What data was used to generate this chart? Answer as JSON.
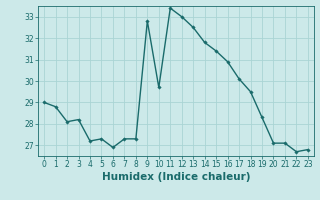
{
  "x": [
    0,
    1,
    2,
    3,
    4,
    5,
    6,
    7,
    8,
    9,
    10,
    11,
    12,
    13,
    14,
    15,
    16,
    17,
    18,
    19,
    20,
    21,
    22,
    23
  ],
  "y": [
    29.0,
    28.8,
    28.1,
    28.2,
    27.2,
    27.3,
    26.9,
    27.3,
    27.3,
    32.8,
    29.7,
    33.4,
    33.0,
    32.5,
    31.8,
    31.4,
    30.9,
    30.1,
    29.5,
    28.3,
    27.1,
    27.1,
    26.7,
    26.8
  ],
  "line_color": "#1a6b6b",
  "marker": "D",
  "marker_size": 1.8,
  "bg_color": "#cce9e9",
  "grid_color": "#aad4d4",
  "xlabel": "Humidex (Indice chaleur)",
  "xlim": [
    -0.5,
    23.5
  ],
  "ylim": [
    26.5,
    33.5
  ],
  "yticks": [
    27,
    28,
    29,
    30,
    31,
    32,
    33
  ],
  "xticks": [
    0,
    1,
    2,
    3,
    4,
    5,
    6,
    7,
    8,
    9,
    10,
    11,
    12,
    13,
    14,
    15,
    16,
    17,
    18,
    19,
    20,
    21,
    22,
    23
  ],
  "tick_label_fontsize": 5.5,
  "xlabel_fontsize": 7.5,
  "line_width": 1.0
}
